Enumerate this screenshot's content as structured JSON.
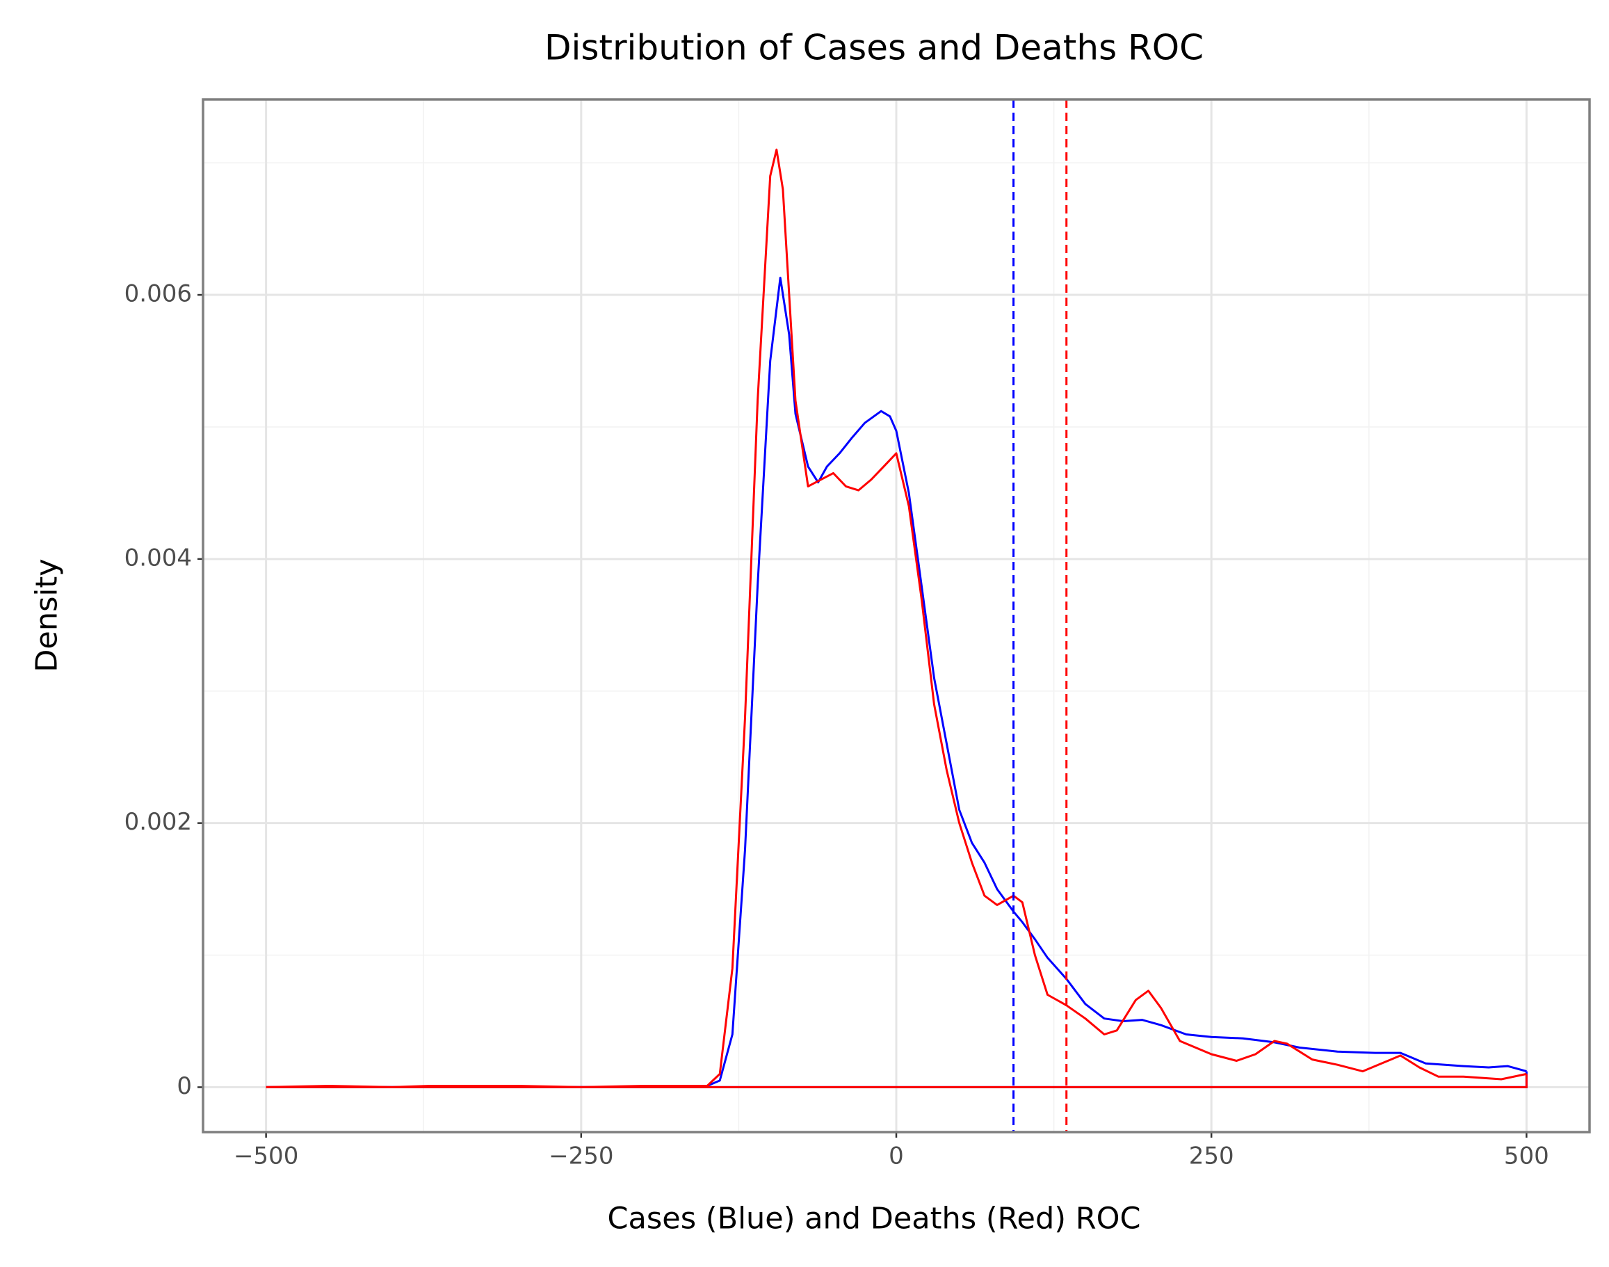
{
  "chart_data": {
    "type": "line",
    "title": "Distribution of Cases and Deaths ROC",
    "x_label": "Cases (Blue) and Deaths (Red) ROC",
    "y_label": "Density",
    "xlim": [
      -550,
      550
    ],
    "ylim": [
      -0.00034,
      0.00748
    ],
    "xticks": [
      {
        "value": -500,
        "label": "−500"
      },
      {
        "value": -250,
        "label": "−250"
      },
      0,
      250,
      500
    ],
    "yticks": [
      0,
      {
        "value": 0.002,
        "label": "0.002"
      },
      {
        "value": 0.004,
        "label": "0.004"
      },
      {
        "value": 0.006,
        "label": "0.006"
      }
    ],
    "x_minor_grid": [
      -375,
      -125,
      125,
      375
    ],
    "y_minor_grid": [
      0.001,
      0.003,
      0.005,
      0.007
    ],
    "grid": true,
    "series": [
      {
        "name": "Cases",
        "color": "#0000ff",
        "x": [
          -500,
          -400,
          -300,
          -200,
          -150,
          -140,
          -130,
          -120,
          -110,
          -100,
          -92,
          -85,
          -80,
          -70,
          -62,
          -55,
          -45,
          -35,
          -25,
          -12,
          -5,
          0,
          10,
          20,
          30,
          40,
          50,
          60,
          70,
          80,
          93,
          100,
          110,
          120,
          135,
          150,
          165,
          180,
          195,
          210,
          230,
          250,
          275,
          300,
          320,
          350,
          380,
          400,
          420,
          450,
          470,
          485,
          500
        ],
        "values": [
          0,
          0,
          0,
          0,
          1e-05,
          5e-05,
          0.0004,
          0.0018,
          0.0038,
          0.0055,
          0.00613,
          0.0057,
          0.0051,
          0.0047,
          0.00458,
          0.0047,
          0.0048,
          0.00492,
          0.00503,
          0.00512,
          0.00508,
          0.00497,
          0.0045,
          0.0038,
          0.0031,
          0.0026,
          0.0021,
          0.00185,
          0.0017,
          0.0015,
          0.00133,
          0.00125,
          0.00112,
          0.00098,
          0.00082,
          0.00063,
          0.00052,
          0.0005,
          0.00051,
          0.00047,
          0.0004,
          0.00038,
          0.00037,
          0.00034,
          0.0003,
          0.00027,
          0.00026,
          0.00026,
          0.00018,
          0.00016,
          0.00015,
          0.00016,
          0.00012
        ]
      },
      {
        "name": "Deaths",
        "color": "#ff0000",
        "x": [
          -500,
          -450,
          -400,
          -370,
          -300,
          -250,
          -200,
          -150,
          -140,
          -130,
          -120,
          -110,
          -100,
          -95,
          -90,
          -80,
          -70,
          -60,
          -50,
          -40,
          -30,
          -20,
          -10,
          0,
          10,
          20,
          30,
          40,
          50,
          60,
          70,
          80,
          93,
          100,
          110,
          120,
          135,
          150,
          165,
          175,
          190,
          200,
          210,
          225,
          250,
          270,
          285,
          300,
          310,
          330,
          350,
          370,
          385,
          400,
          415,
          430,
          450,
          480,
          500
        ],
        "values": [
          0,
          1e-05,
          0,
          1e-05,
          1e-05,
          0,
          1e-05,
          1e-05,
          0.0001,
          0.0009,
          0.0028,
          0.0052,
          0.0069,
          0.0071,
          0.0068,
          0.0052,
          0.00455,
          0.0046,
          0.00465,
          0.00455,
          0.00452,
          0.0046,
          0.0047,
          0.0048,
          0.0044,
          0.0037,
          0.0029,
          0.0024,
          0.002,
          0.0017,
          0.00145,
          0.00138,
          0.00145,
          0.0014,
          0.001,
          0.0007,
          0.00062,
          0.00052,
          0.0004,
          0.00043,
          0.00066,
          0.00073,
          0.0006,
          0.00035,
          0.00025,
          0.0002,
          0.00025,
          0.00035,
          0.00033,
          0.00021,
          0.00017,
          0.00012,
          0.00018,
          0.00024,
          0.00015,
          8e-05,
          8e-05,
          6e-05,
          0.0001
        ]
      }
    ],
    "vlines": [
      {
        "x": 93,
        "color": "#0000ff"
      },
      {
        "x": 135,
        "color": "#ff0000"
      }
    ]
  }
}
